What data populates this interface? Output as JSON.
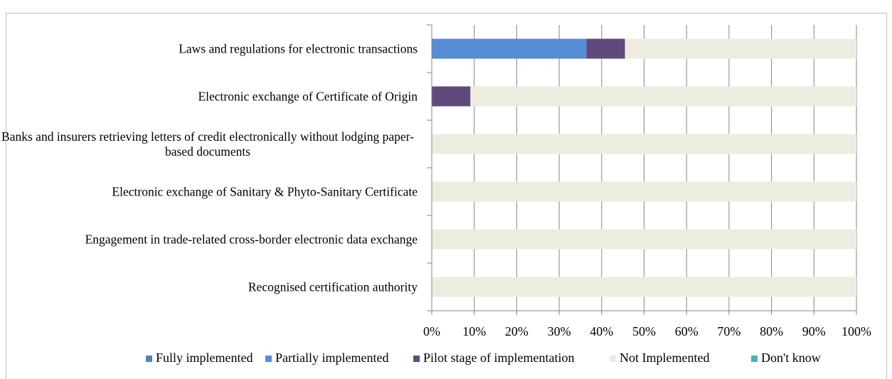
{
  "chart_data": {
    "type": "stacked-barh",
    "categories": [
      "Laws and regulations for electronic transactions",
      "Electronic exchange of Certificate of Origin",
      "Banks and insurers retrieving letters of credit electronically without lodging paper-based documents",
      "Electronic exchange of Sanitary & Phyto-Sanitary Certificate",
      "Engagement in trade-related cross-border electronic data exchange",
      "Recognised certification authority"
    ],
    "series": [
      {
        "name": "Fully implemented",
        "color": "#4f81bd",
        "values": [
          0,
          0,
          0,
          0,
          0,
          0
        ]
      },
      {
        "name": "Partially implemented",
        "color": "#558ed5",
        "values": [
          36.4,
          0,
          0,
          0,
          0,
          0
        ]
      },
      {
        "name": "Pilot stage of implementation",
        "color": "#604a7b",
        "values": [
          9.1,
          9.1,
          0,
          0,
          0,
          0
        ]
      },
      {
        "name": "Not Implemented",
        "color": "#eeece1",
        "values": [
          54.5,
          90.9,
          100,
          100,
          100,
          100
        ]
      },
      {
        "name": "Don't know",
        "color": "#4bacc6",
        "values": [
          0,
          0,
          0,
          0,
          0,
          0
        ]
      }
    ],
    "xlim": [
      0,
      100
    ],
    "xticks": [
      {
        "value": 0,
        "label": "0%"
      },
      {
        "value": 10,
        "label": "10%"
      },
      {
        "value": 20,
        "label": "20%"
      },
      {
        "value": 30,
        "label": "30%"
      },
      {
        "value": 40,
        "label": "40%"
      },
      {
        "value": 50,
        "label": "50%"
      },
      {
        "value": 60,
        "label": "60%"
      },
      {
        "value": 70,
        "label": "70%"
      },
      {
        "value": 80,
        "label": "80%"
      },
      {
        "value": 90,
        "label": "90%"
      },
      {
        "value": 100,
        "label": "100%"
      }
    ],
    "grid": true,
    "legend": "bottom"
  }
}
